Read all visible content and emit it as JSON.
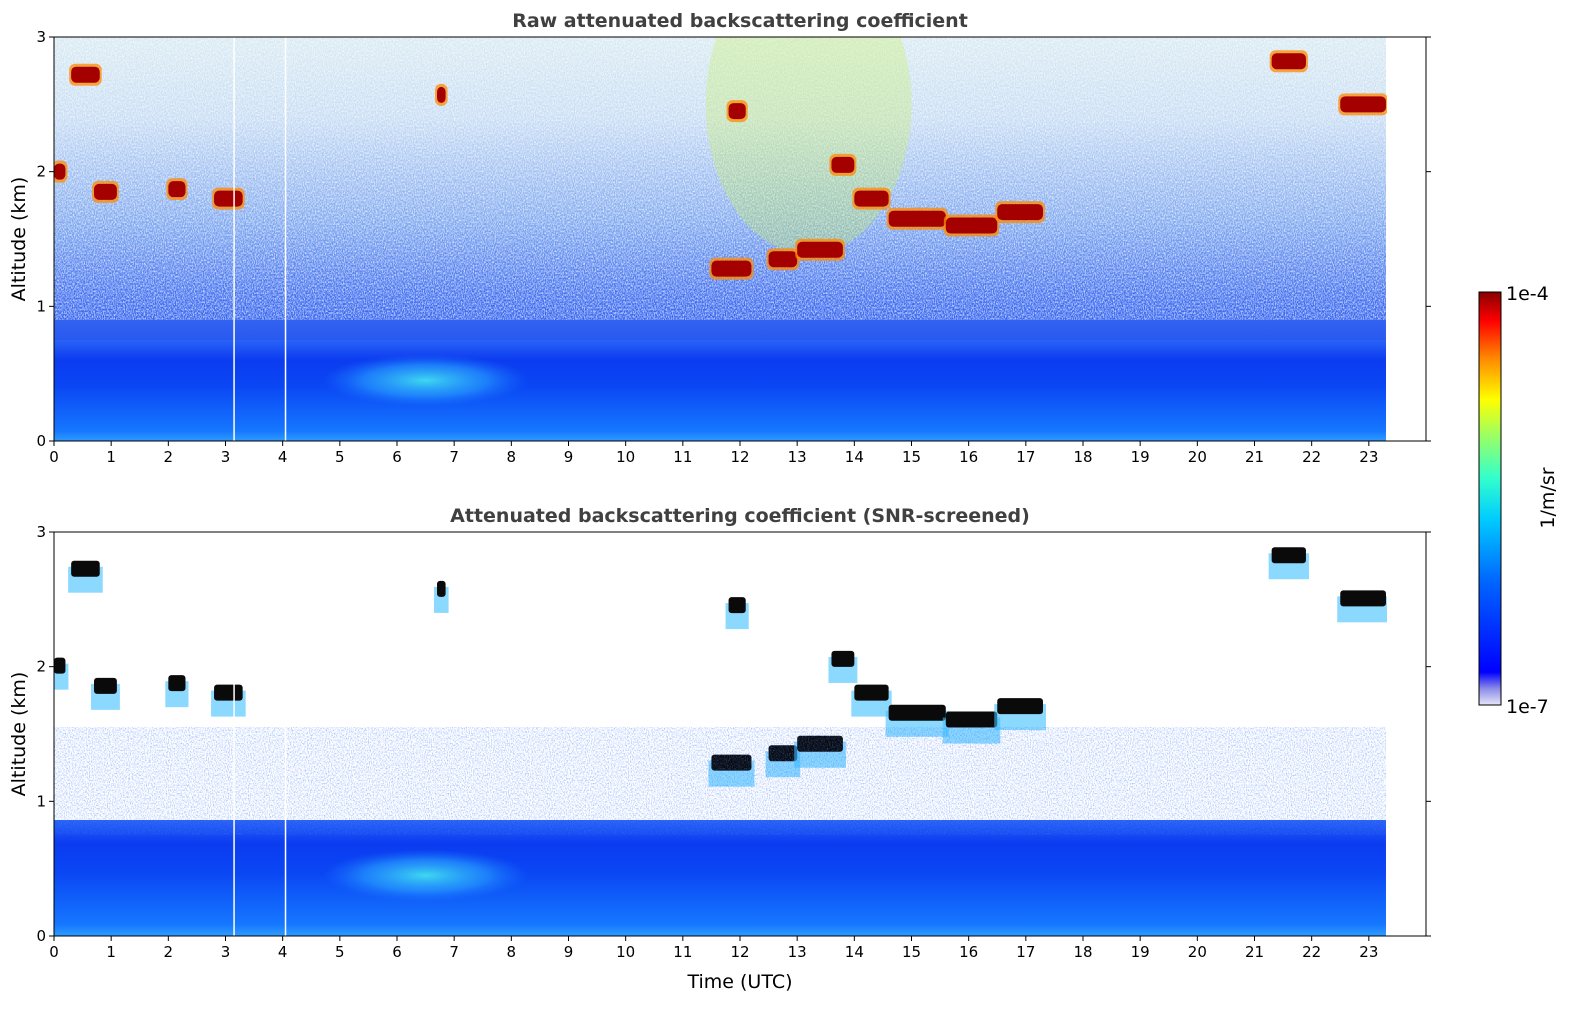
{
  "chart_data": [
    {
      "type": "heatmap",
      "title": "Raw attenuated backscattering coefficient",
      "xlabel": "",
      "ylabel": "Altitude (km)",
      "x_ticks": [
        "0",
        "1",
        "2",
        "3",
        "4",
        "5",
        "6",
        "7",
        "8",
        "9",
        "10",
        "11",
        "12",
        "13",
        "14",
        "15",
        "16",
        "17",
        "18",
        "19",
        "20",
        "21",
        "22",
        "23"
      ],
      "y_ticks": [
        "0",
        "1",
        "2",
        "3"
      ],
      "xlim": [
        0,
        24
      ],
      "ylim": [
        0,
        3
      ],
      "data_end_time": 23.3,
      "clouds": [
        {
          "t0": 0.0,
          "t1": 0.2,
          "alt": 2.0
        },
        {
          "t0": 0.3,
          "t1": 0.8,
          "alt": 2.72
        },
        {
          "t0": 0.7,
          "t1": 1.1,
          "alt": 1.85
        },
        {
          "t0": 2.0,
          "t1": 2.3,
          "alt": 1.87
        },
        {
          "t0": 2.8,
          "t1": 3.3,
          "alt": 1.8
        },
        {
          "t0": 6.7,
          "t1": 6.85,
          "alt": 2.57
        },
        {
          "t0": 11.5,
          "t1": 12.2,
          "alt": 1.28
        },
        {
          "t0": 11.8,
          "t1": 12.1,
          "alt": 2.45
        },
        {
          "t0": 12.5,
          "t1": 13.0,
          "alt": 1.35
        },
        {
          "t0": 13.0,
          "t1": 13.8,
          "alt": 1.42
        },
        {
          "t0": 13.6,
          "t1": 14.0,
          "alt": 2.05
        },
        {
          "t0": 14.0,
          "t1": 14.6,
          "alt": 1.8
        },
        {
          "t0": 14.6,
          "t1": 15.6,
          "alt": 1.65
        },
        {
          "t0": 15.6,
          "t1": 16.5,
          "alt": 1.6
        },
        {
          "t0": 16.5,
          "t1": 17.3,
          "alt": 1.7
        },
        {
          "t0": 21.3,
          "t1": 21.9,
          "alt": 2.82
        },
        {
          "t0": 22.5,
          "t1": 23.3,
          "alt": 2.5
        }
      ]
    },
    {
      "type": "heatmap",
      "title": "Attenuated backscattering coefficient (SNR-screened)",
      "xlabel": "Time (UTC)",
      "ylabel": "Altitude (km)",
      "x_ticks": [
        "0",
        "1",
        "2",
        "3",
        "4",
        "5",
        "6",
        "7",
        "8",
        "9",
        "10",
        "11",
        "12",
        "13",
        "14",
        "15",
        "16",
        "17",
        "18",
        "19",
        "20",
        "21",
        "22",
        "23"
      ],
      "y_ticks": [
        "0",
        "1",
        "2",
        "3"
      ],
      "xlim": [
        0,
        24
      ],
      "ylim": [
        0,
        3
      ],
      "data_end_time": 23.3
    }
  ],
  "colorbar": {
    "label": "1/m/sr",
    "max_label": "1e-4",
    "min_label": "1e-7",
    "colormap": "jet",
    "scale": "log"
  }
}
